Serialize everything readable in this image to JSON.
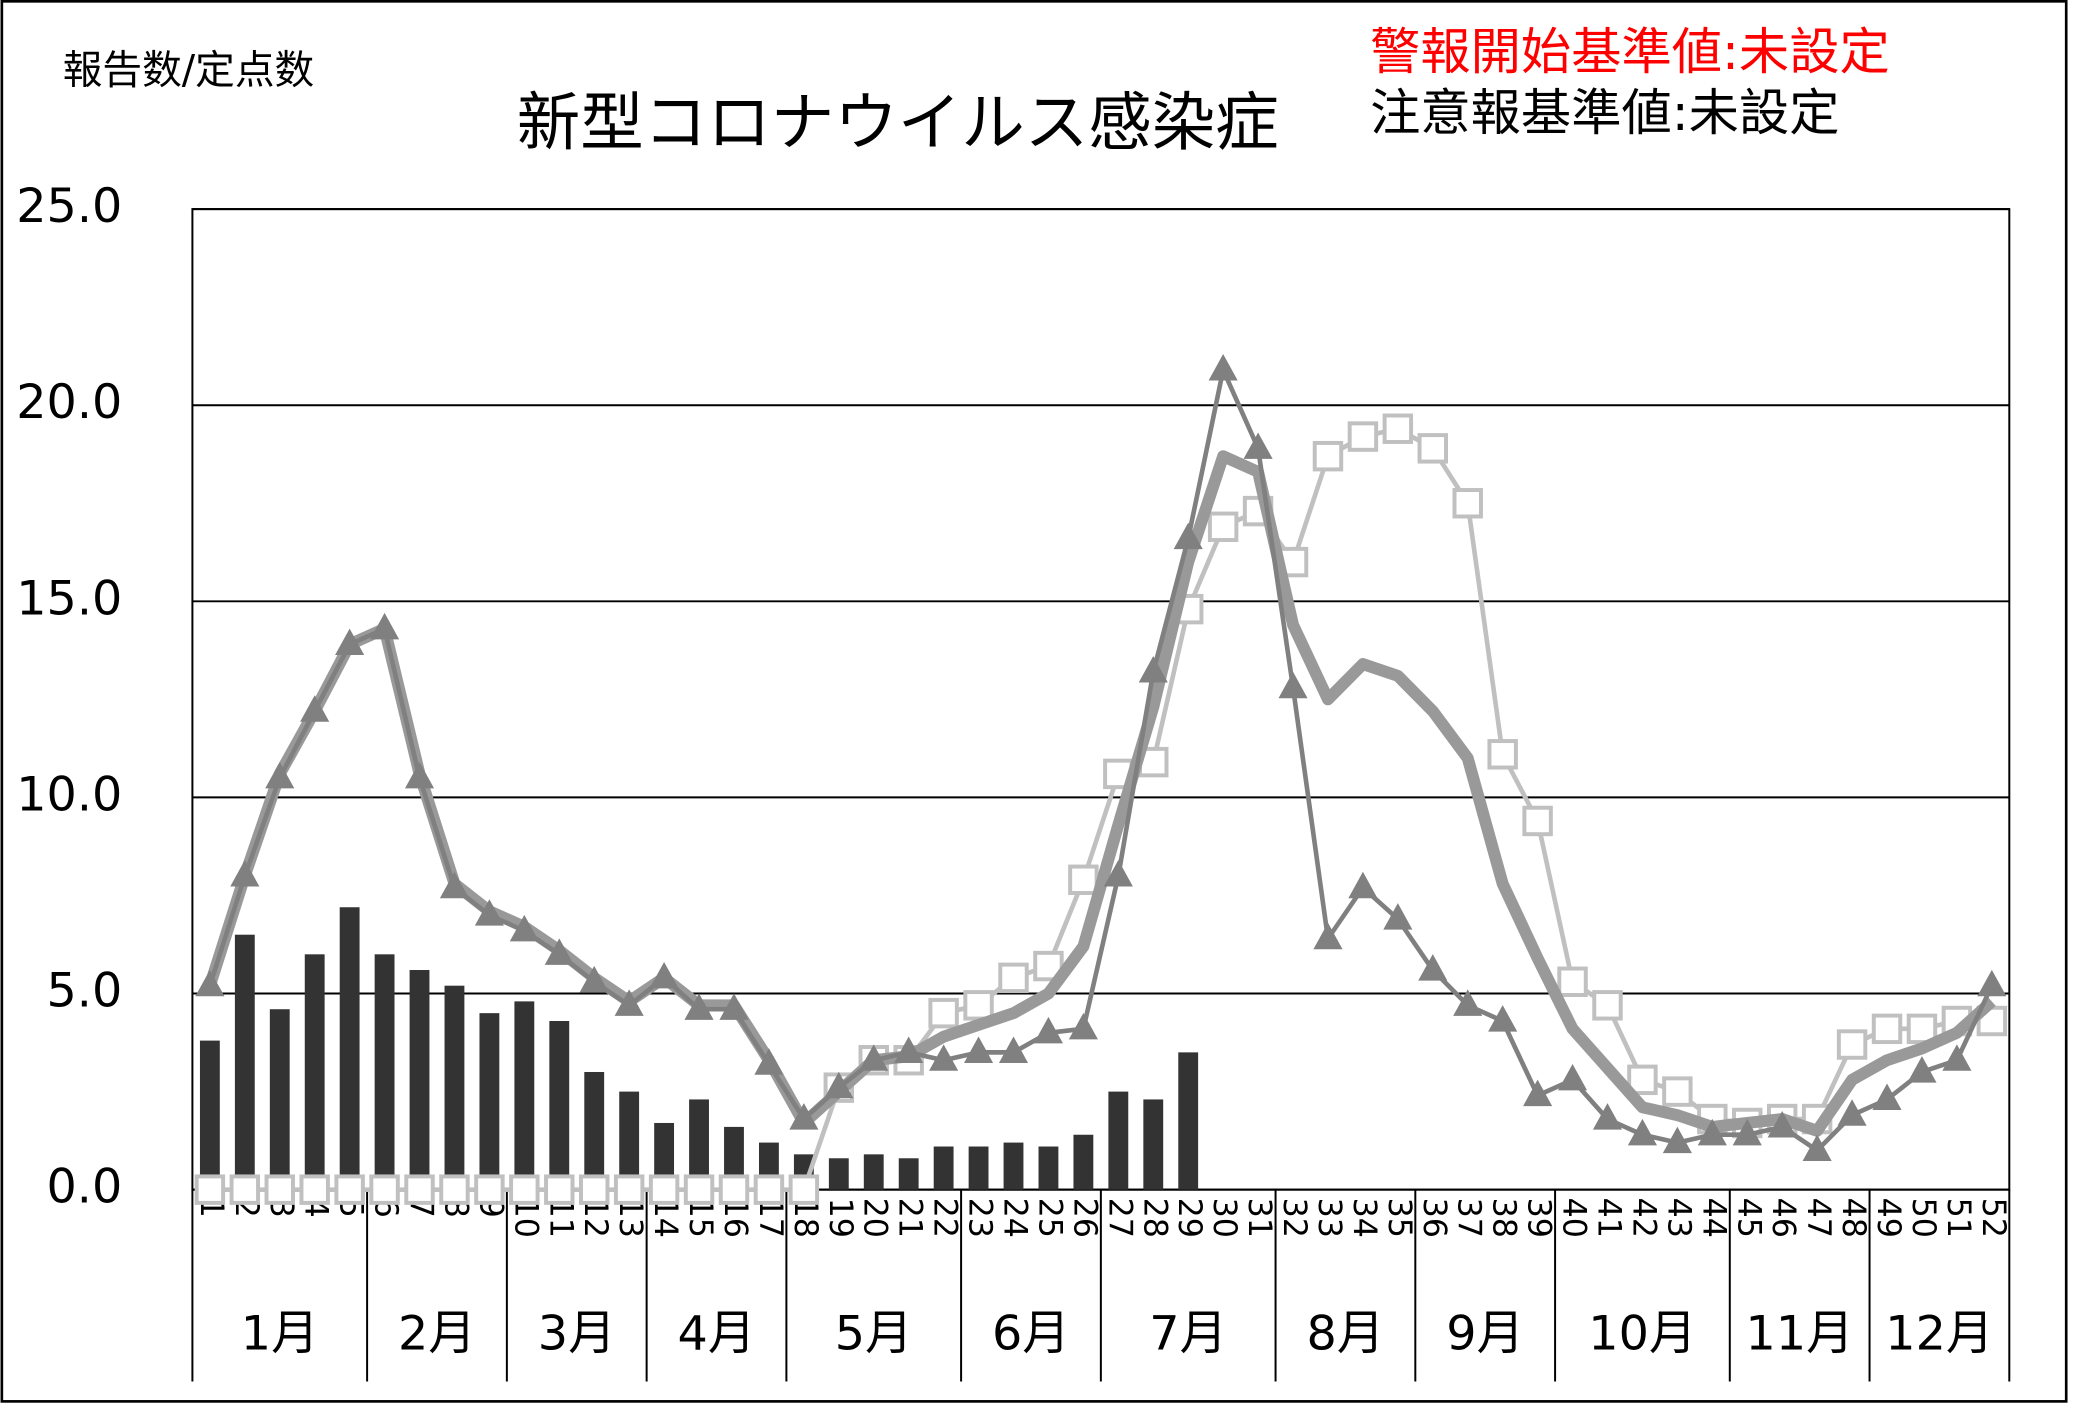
{
  "chart_data": {
    "type": "line",
    "title": "新型コロナウイルス感染症",
    "y_label": "報告数/定点数",
    "annotations": [
      {
        "text": "警報開始基準値:未設定",
        "color": "#ff0000"
      },
      {
        "text": "注意報基準値:未設定",
        "color": "#000000"
      }
    ],
    "categories": [
      "1",
      "2",
      "3",
      "4",
      "5",
      "6",
      "7",
      "8",
      "9",
      "10",
      "11",
      "12",
      "13",
      "14",
      "15",
      "16",
      "17",
      "18",
      "19",
      "20",
      "21",
      "22",
      "23",
      "24",
      "25",
      "26",
      "27",
      "28",
      "29",
      "30",
      "31",
      "32",
      "33",
      "34",
      "35",
      "36",
      "37",
      "38",
      "39",
      "40",
      "41",
      "42",
      "43",
      "44",
      "45",
      "46",
      "47",
      "48",
      "49",
      "50",
      "51",
      "52"
    ],
    "months": [
      "1月",
      "2月",
      "3月",
      "4月",
      "5月",
      "6月",
      "7月",
      "8月",
      "9月",
      "10月",
      "11月",
      "12月"
    ],
    "month_weeks": [
      5,
      4,
      4,
      4,
      5,
      4,
      5,
      4,
      4,
      5,
      4,
      4
    ],
    "ylim": [
      0,
      25
    ],
    "yticks": [
      {
        "value": 0,
        "label": "0.0"
      },
      {
        "value": 5,
        "label": "5.0"
      },
      {
        "value": 10,
        "label": "10.0"
      },
      {
        "value": 15,
        "label": "15.0"
      },
      {
        "value": 20,
        "label": "20.0"
      },
      {
        "value": 25,
        "label": "25.0"
      }
    ],
    "grid": true,
    "series": [
      {
        "type": "bar",
        "color": "#333333",
        "values": [
          3.8,
          6.5,
          4.6,
          6.0,
          7.2,
          6.0,
          5.6,
          5.2,
          4.5,
          4.8,
          4.3,
          3.0,
          2.5,
          1.7,
          2.3,
          1.6,
          1.2,
          0.9,
          0.8,
          0.9,
          0.8,
          1.1,
          1.1,
          1.2,
          1.1,
          1.4,
          2.5,
          2.3,
          3.5,
          null,
          null,
          null,
          null,
          null,
          null,
          null,
          null,
          null,
          null,
          null,
          null,
          null,
          null,
          null,
          null,
          null,
          null,
          null,
          null,
          null,
          null,
          null
        ]
      },
      {
        "type": "line",
        "marker": "square",
        "color": "#c0c0c0",
        "values": [
          0,
          0,
          0,
          0,
          0,
          0,
          0,
          0,
          0,
          0,
          0,
          0,
          0,
          0,
          0,
          0,
          0,
          0,
          2.6,
          3.3,
          3.3,
          4.5,
          4.7,
          5.4,
          5.7,
          7.9,
          10.6,
          10.9,
          14.8,
          16.9,
          17.3,
          16.0,
          18.7,
          19.2,
          19.4,
          18.9,
          17.5,
          11.1,
          9.4,
          5.3,
          4.7,
          2.8,
          2.5,
          1.8,
          1.7,
          1.8,
          1.8,
          3.7,
          4.1,
          4.1,
          4.3,
          4.3
        ]
      },
      {
        "type": "line",
        "marker": "none",
        "color": "#999999",
        "values": [
          5.2,
          8.0,
          10.6,
          12.2,
          13.9,
          14.3,
          10.6,
          7.8,
          7.1,
          6.7,
          6.1,
          5.4,
          4.8,
          5.4,
          4.7,
          4.7,
          3.3,
          1.7,
          2.5,
          3.3,
          3.4,
          3.9,
          4.2,
          4.5,
          5.0,
          6.2,
          9.3,
          12.3,
          16.0,
          18.7,
          18.3,
          14.4,
          12.5,
          13.4,
          13.1,
          12.2,
          11.0,
          7.8,
          5.9,
          4.1,
          3.1,
          2.1,
          1.9,
          1.6,
          1.7,
          1.8,
          1.5,
          2.8,
          3.3,
          3.6,
          4.0,
          4.8
        ]
      },
      {
        "type": "line",
        "marker": "triangle",
        "color": "#808080",
        "values": [
          5.2,
          8.0,
          10.5,
          12.2,
          13.9,
          14.3,
          10.5,
          7.7,
          7.0,
          6.6,
          6.0,
          5.3,
          4.7,
          5.4,
          4.6,
          4.6,
          3.2,
          1.8,
          2.6,
          3.3,
          3.5,
          3.3,
          3.5,
          3.5,
          4.0,
          4.1,
          8.0,
          13.2,
          16.6,
          20.9,
          18.9,
          12.8,
          6.4,
          7.7,
          6.9,
          5.6,
          4.7,
          4.3,
          2.4,
          2.8,
          1.8,
          1.4,
          1.2,
          1.4,
          1.4,
          1.6,
          1.0,
          1.9,
          2.3,
          3.0,
          3.3,
          5.2
        ]
      }
    ]
  }
}
